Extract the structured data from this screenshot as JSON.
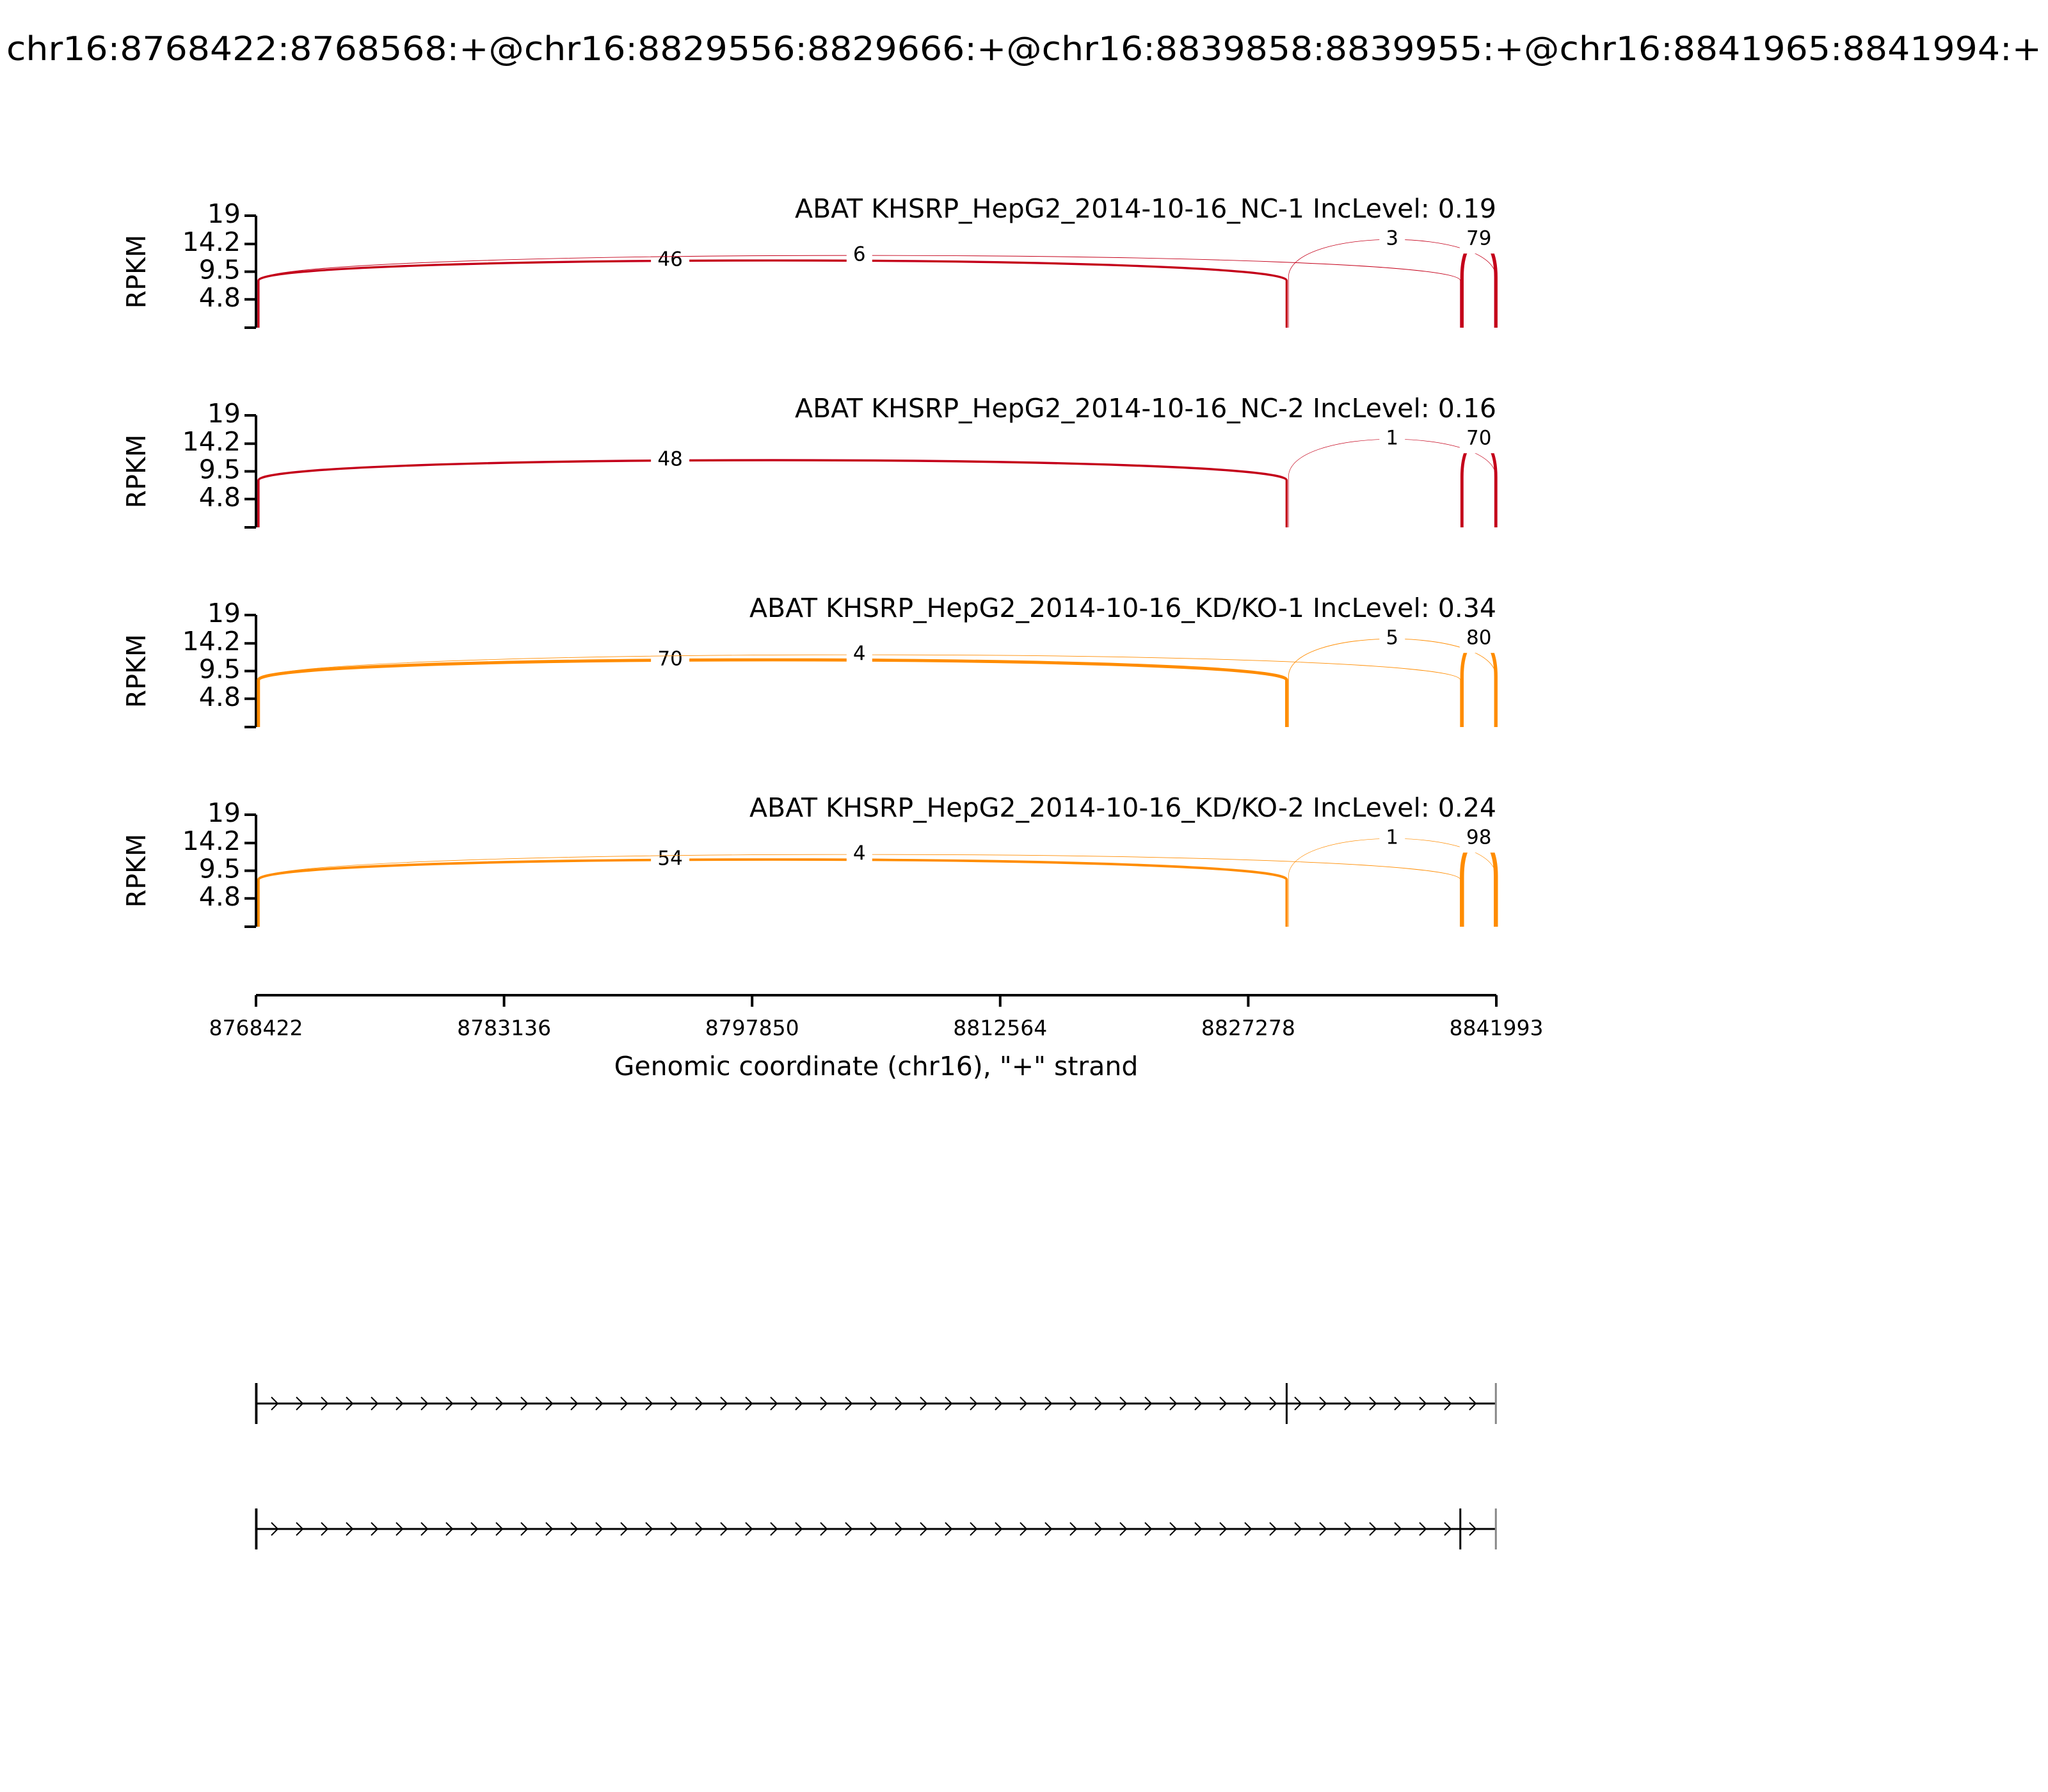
{
  "title": "chr16:8768422:8768568:+@chr16:8829556:8829666:+@chr16:8839858:8839955:+@chr16:8841965:8841994:+",
  "xlabel": "Genomic coordinate (chr16), \"+\" strand",
  "xlim": [
    8768422,
    8841993
  ],
  "xticks": [
    8768422,
    8783136,
    8797850,
    8812564,
    8827278,
    8841993
  ],
  "chart_data": [
    {
      "type": "sashimi",
      "title": "ABAT KHSRP_HepG2_2014-10-16_NC-1 IncLevel: 0.19",
      "ylabel": "RPKM",
      "color": "#c4001a",
      "ylim": [
        0,
        19
      ],
      "yticks": [
        4.8,
        9.5,
        14.2,
        19
      ],
      "junctions": [
        {
          "start": 8768568,
          "end": 8829556,
          "count": 46
        },
        {
          "start": 8768568,
          "end": 8839858,
          "count": 6
        },
        {
          "start": 8829666,
          "end": 8841965,
          "count": 3
        },
        {
          "start": 8839955,
          "end": 8841965,
          "count": 79
        }
      ]
    },
    {
      "type": "sashimi",
      "title": "ABAT KHSRP_HepG2_2014-10-16_NC-2 IncLevel: 0.16",
      "ylabel": "RPKM",
      "color": "#c4001a",
      "ylim": [
        0,
        19
      ],
      "yticks": [
        4.8,
        9.5,
        14.2,
        19
      ],
      "junctions": [
        {
          "start": 8768568,
          "end": 8829556,
          "count": 48
        },
        {
          "start": 8829666,
          "end": 8841965,
          "count": 1
        },
        {
          "start": 8839955,
          "end": 8841965,
          "count": 70
        }
      ]
    },
    {
      "type": "sashimi",
      "title": "ABAT KHSRP_HepG2_2014-10-16_KD/KO-1 IncLevel: 0.34",
      "ylabel": "RPKM",
      "color": "#ff8c00",
      "ylim": [
        0,
        19
      ],
      "yticks": [
        4.8,
        9.5,
        14.2,
        19
      ],
      "junctions": [
        {
          "start": 8768568,
          "end": 8829556,
          "count": 70
        },
        {
          "start": 8768568,
          "end": 8839858,
          "count": 4
        },
        {
          "start": 8829666,
          "end": 8841965,
          "count": 5
        },
        {
          "start": 8839955,
          "end": 8841965,
          "count": 80
        }
      ]
    },
    {
      "type": "sashimi",
      "title": "ABAT KHSRP_HepG2_2014-10-16_KD/KO-2 IncLevel: 0.24",
      "ylabel": "RPKM",
      "color": "#ff8c00",
      "ylim": [
        0,
        19
      ],
      "yticks": [
        4.8,
        9.5,
        14.2,
        19
      ],
      "junctions": [
        {
          "start": 8768568,
          "end": 8829556,
          "count": 54
        },
        {
          "start": 8768568,
          "end": 8839858,
          "count": 4
        },
        {
          "start": 8829666,
          "end": 8841965,
          "count": 1
        },
        {
          "start": 8839955,
          "end": 8841965,
          "count": 98
        }
      ]
    }
  ],
  "transcripts": [
    {
      "exons": [
        [
          8768422,
          8768568
        ],
        [
          8829556,
          8829666
        ],
        [
          8841965,
          8841994
        ]
      ]
    },
    {
      "exons": [
        [
          8768422,
          8768568
        ],
        [
          8839858,
          8839955
        ],
        [
          8841965,
          8841994
        ]
      ]
    }
  ]
}
